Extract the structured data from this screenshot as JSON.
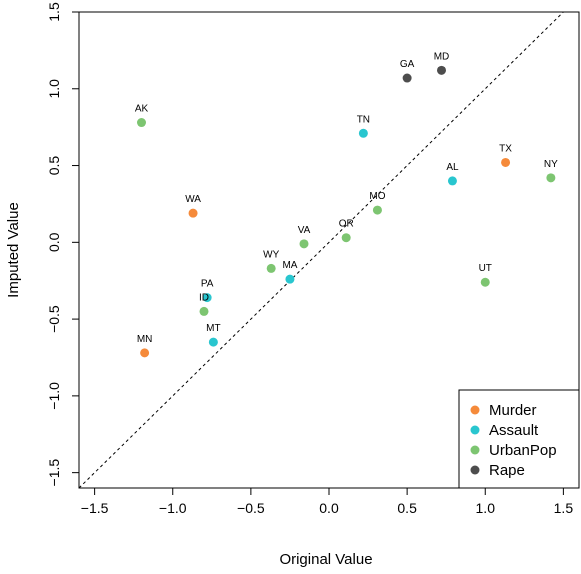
{
  "chart_data": {
    "type": "scatter",
    "title": "",
    "xlabel": "Original Value",
    "ylabel": "Imputed Value",
    "xlim": [
      -1.6,
      1.6
    ],
    "ylim": [
      -1.6,
      1.5
    ],
    "x_ticks": [
      -1.5,
      -1.0,
      -0.5,
      0.0,
      0.5,
      1.0,
      1.5
    ],
    "x_tick_labels": [
      "−1.5",
      "−1.0",
      "−0.5",
      "0.0",
      "0.5",
      "1.0",
      "1.5"
    ],
    "y_ticks": [
      -1.5,
      -1.0,
      -0.5,
      0.0,
      0.5,
      1.0,
      1.5
    ],
    "y_tick_labels": [
      "−1.5",
      "−1.0",
      "−0.5",
      "0.0",
      "0.5",
      "1.0",
      "1.5"
    ],
    "grid": false,
    "reference_line": {
      "slope": 1,
      "intercept": 0,
      "style": "dashed"
    },
    "legend_position": "bottom-right",
    "series": [
      {
        "name": "Murder",
        "color": "#f58a3a",
        "points": [
          {
            "label": "WA",
            "x": -0.87,
            "y": 0.19
          },
          {
            "label": "MN",
            "x": -1.18,
            "y": -0.72
          },
          {
            "label": "TX",
            "x": 1.13,
            "y": 0.52
          }
        ]
      },
      {
        "name": "Assault",
        "color": "#29c6cf",
        "points": [
          {
            "label": "TN",
            "x": 0.22,
            "y": 0.71
          },
          {
            "label": "AL",
            "x": 0.79,
            "y": 0.4
          },
          {
            "label": "MA",
            "x": -0.25,
            "y": -0.24
          },
          {
            "label": "PA",
            "x": -0.78,
            "y": -0.36
          },
          {
            "label": "MT",
            "x": -0.74,
            "y": -0.65
          }
        ]
      },
      {
        "name": "UrbanPop",
        "color": "#7dc571",
        "points": [
          {
            "label": "AK",
            "x": -1.2,
            "y": 0.78
          },
          {
            "label": "NY",
            "x": 1.42,
            "y": 0.42
          },
          {
            "label": "MO",
            "x": 0.31,
            "y": 0.21
          },
          {
            "label": "OR",
            "x": 0.11,
            "y": 0.03
          },
          {
            "label": "VA",
            "x": -0.16,
            "y": -0.01
          },
          {
            "label": "WY",
            "x": -0.37,
            "y": -0.17
          },
          {
            "label": "ID",
            "x": -0.8,
            "y": -0.45
          },
          {
            "label": "UT",
            "x": 1.0,
            "y": -0.26
          }
        ]
      },
      {
        "name": "Rape",
        "color": "#4d4d4d",
        "points": [
          {
            "label": "GA",
            "x": 0.5,
            "y": 1.07
          },
          {
            "label": "MD",
            "x": 0.72,
            "y": 1.12
          }
        ]
      }
    ]
  }
}
